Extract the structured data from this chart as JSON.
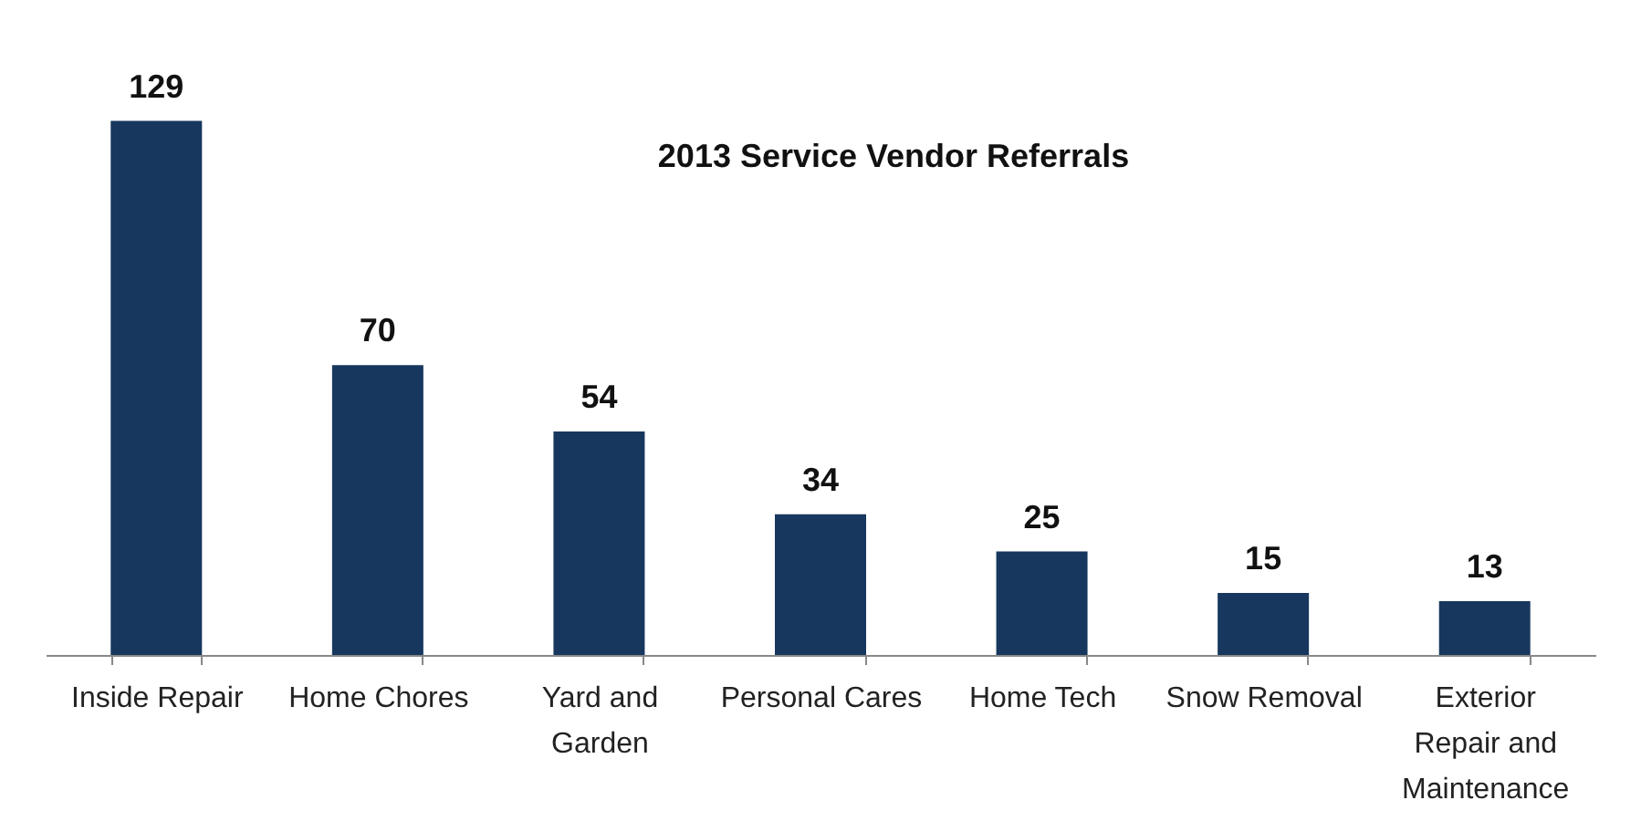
{
  "chart_data": {
    "type": "bar",
    "title": "2013 Service Vendor Referrals",
    "categories": [
      "Inside Repair",
      "Home Chores",
      "Yard and Garden",
      "Personal Cares",
      "Home Tech",
      "Snow Removal",
      "Exterior Repair and Maintenance"
    ],
    "values": [
      129,
      70,
      54,
      34,
      25,
      15,
      13
    ],
    "color": "#17375e",
    "data_labels": true,
    "grid": false,
    "tick_labels": "x"
  }
}
